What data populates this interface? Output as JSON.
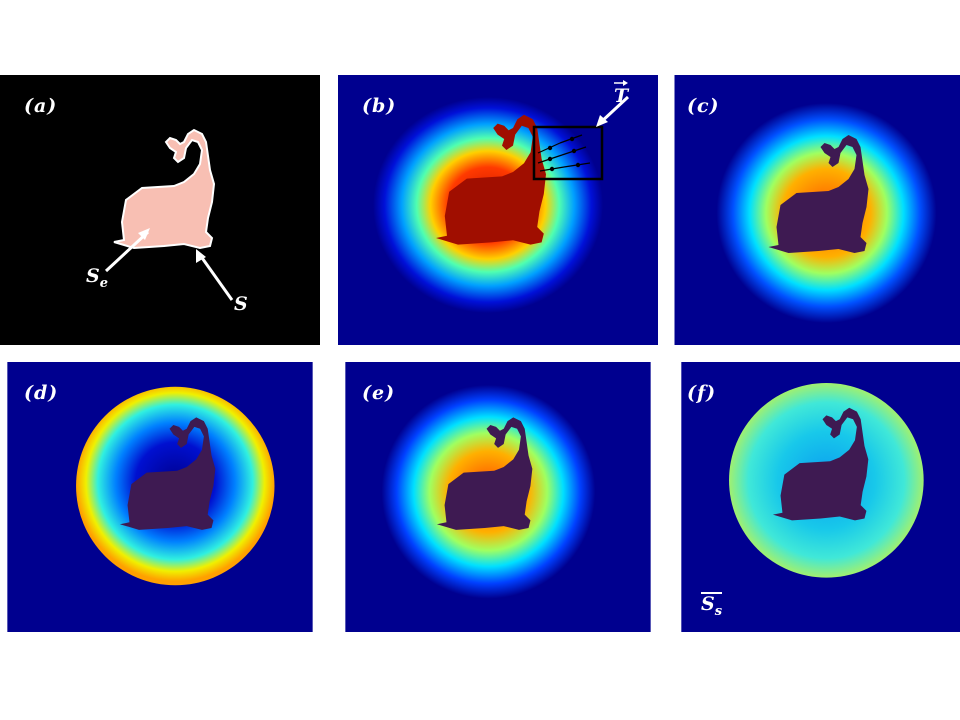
{
  "panels": [
    {
      "id": "a",
      "label": "(a)"
    },
    {
      "id": "b",
      "label": "(b)"
    },
    {
      "id": "c",
      "label": "(c)"
    },
    {
      "id": "d",
      "label": "(d)"
    },
    {
      "id": "e",
      "label": "(e)"
    },
    {
      "id": "f",
      "label": "(f)"
    }
  ],
  "annotations": {
    "se_main": "S",
    "se_sub": "e",
    "s": "S",
    "t_vec": "T",
    "ss_main": "S",
    "ss_sub": "s"
  },
  "colors": {
    "background_dark_blue": "#00008f",
    "shape_fill_pink": "#f8bfb3",
    "shape_fill_purple": "#3e1a52",
    "core_red": "#a00e00",
    "panel_a_bg": "#000000",
    "panel_f_field": "#1ed6e6"
  }
}
